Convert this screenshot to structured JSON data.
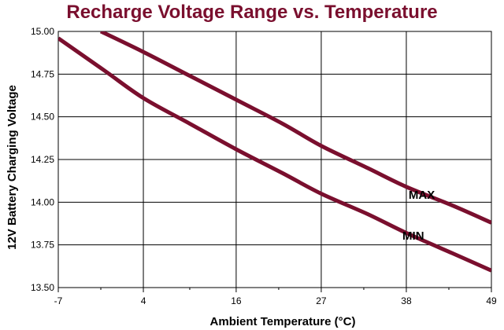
{
  "chart_data": {
    "type": "line",
    "title": "Recharge Voltage Range vs. Temperature",
    "xlabel": "Ambient Temperature (°C)",
    "ylabel": "12V Battery Charging Voltage",
    "xlim": [
      -7,
      49
    ],
    "ylim": [
      13.5,
      15.0
    ],
    "x_ticks": [
      -7,
      4,
      16,
      27,
      38,
      49
    ],
    "x_tick_labels": [
      "-7",
      "4",
      "16",
      "27",
      "38",
      "49"
    ],
    "y_ticks": [
      13.5,
      13.75,
      14.0,
      14.25,
      14.5,
      14.75,
      15.0
    ],
    "y_tick_labels": [
      "13.50",
      "13.75",
      "14.00",
      "14.25",
      "14.50",
      "14.75",
      "15.00"
    ],
    "grid": true,
    "line_color": "#7a0f2e",
    "series": [
      {
        "name": "MAX",
        "x": [
          -1.5,
          4,
          10,
          16,
          22,
          27,
          33,
          38,
          44,
          49
        ],
        "y": [
          15.0,
          14.88,
          14.74,
          14.6,
          14.46,
          14.33,
          14.2,
          14.09,
          13.98,
          13.88
        ]
      },
      {
        "name": "MIN",
        "x": [
          -7,
          -1,
          4,
          10,
          16,
          22,
          27,
          33,
          38,
          44,
          49
        ],
        "y": [
          14.96,
          14.77,
          14.61,
          14.46,
          14.31,
          14.17,
          14.05,
          13.93,
          13.82,
          13.7,
          13.6
        ]
      }
    ]
  }
}
